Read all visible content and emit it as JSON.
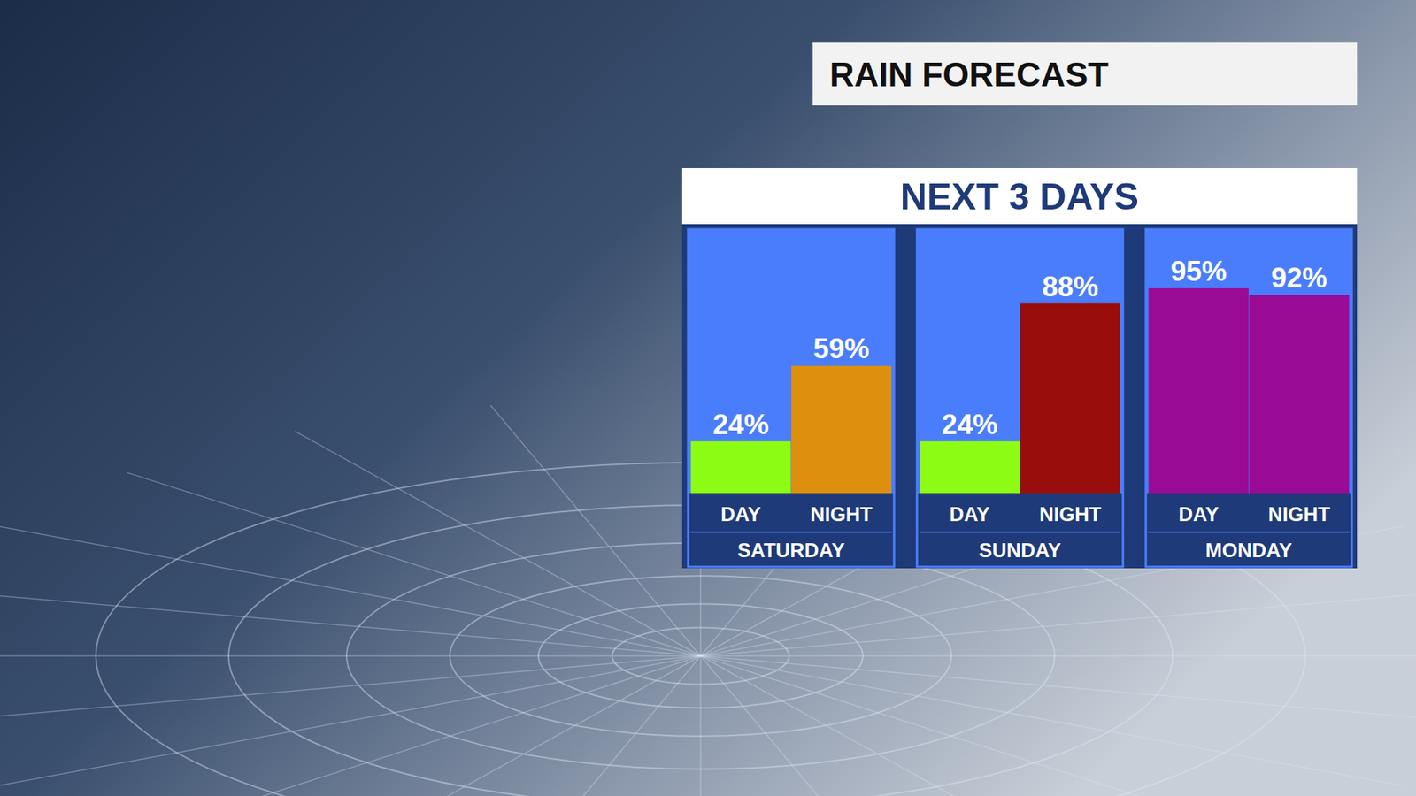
{
  "chart_data": {
    "type": "bar",
    "title": "RAIN FORECAST",
    "subtitle": "NEXT 3 DAYS",
    "categories": [
      "SATURDAY",
      "SUNDAY",
      "MONDAY"
    ],
    "series": [
      {
        "name": "DAY",
        "values": [
          24,
          24,
          95
        ],
        "value_labels": [
          "24%",
          "24%",
          "95%"
        ],
        "colors": [
          "#8cfc14",
          "#8cfc14",
          "#990b95"
        ]
      },
      {
        "name": "NIGHT",
        "values": [
          59,
          88,
          92
        ],
        "value_labels": [
          "59%",
          "88%",
          "92%"
        ],
        "colors": [
          "#de8f0e",
          "#990d0d",
          "#990b95"
        ]
      }
    ],
    "ylim": [
      0,
      120
    ],
    "data_labels": true,
    "tick_labels": false,
    "grid": false
  }
}
